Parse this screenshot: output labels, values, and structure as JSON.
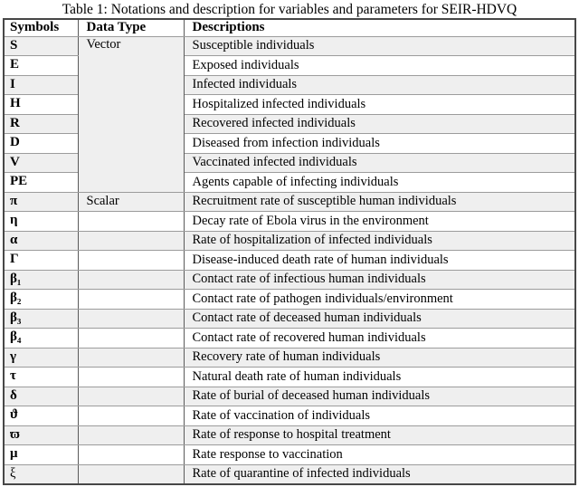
{
  "title": "Table 1: Notations and description for variables and parameters for SEIR-HDVQ",
  "colors": {
    "row_shade": "#efefef",
    "grid_horizontal": "#9c9c9c",
    "grid_vertical": "#5a5a5a",
    "text": "#000000",
    "background": "#ffffff"
  },
  "table": {
    "headers": [
      "Symbols",
      "Data Type",
      "Descriptions"
    ],
    "vector_label": "Vector",
    "scalar_label": "Scalar",
    "rows": [
      {
        "symbol": "S",
        "data_type": "Vector",
        "description": "Susceptible individuals"
      },
      {
        "symbol": "E",
        "data_type": "",
        "description": "Exposed individuals"
      },
      {
        "symbol": "I",
        "data_type": "",
        "description": "Infected individuals"
      },
      {
        "symbol": "H",
        "data_type": "",
        "description": "Hospitalized infected individuals"
      },
      {
        "symbol": "R",
        "data_type": "",
        "description": "Recovered infected individuals"
      },
      {
        "symbol": "D",
        "data_type": "",
        "description": "Diseased from infection individuals"
      },
      {
        "symbol": "V",
        "data_type": "",
        "description": "Vaccinated infected individuals"
      },
      {
        "symbol": "PE",
        "data_type": "",
        "description": "Agents capable of infecting individuals"
      },
      {
        "symbol": "π",
        "data_type": "Scalar",
        "description": "Recruitment rate of susceptible human individuals"
      },
      {
        "symbol": "η",
        "data_type": "",
        "description": "Decay rate of Ebola virus in the environment"
      },
      {
        "symbol": "α",
        "data_type": "",
        "description": "Rate of hospitalization of infected individuals"
      },
      {
        "symbol": "Γ",
        "data_type": "",
        "description": "Disease-induced death rate of human individuals"
      },
      {
        "symbol": "β₁",
        "data_type": "",
        "description": "Contact rate of infectious human individuals"
      },
      {
        "symbol": "β₂",
        "data_type": "",
        "description": "Contact rate of pathogen individuals/environment"
      },
      {
        "symbol": "β₃",
        "data_type": "",
        "description": "Contact rate of deceased human individuals"
      },
      {
        "symbol": "β₄",
        "data_type": "",
        "description": "Contact rate of recovered human individuals"
      },
      {
        "symbol": "γ",
        "data_type": "",
        "description": "Recovery rate of human individuals"
      },
      {
        "symbol": "τ",
        "data_type": "",
        "description": "Natural death rate of human individuals"
      },
      {
        "symbol": "δ",
        "data_type": "",
        "description": "Rate of  burial of deceased human individuals"
      },
      {
        "symbol": "ϑ",
        "data_type": "",
        "description": "Rate of vaccination of individuals"
      },
      {
        "symbol": "ϖ",
        "data_type": "",
        "description": "Rate of response to hospital treatment"
      },
      {
        "symbol": "μ",
        "data_type": "",
        "description": "Rate response to vaccination"
      },
      {
        "symbol": "ξ",
        "data_type": "",
        "description": "Rate of quarantine of infected individuals"
      }
    ]
  }
}
